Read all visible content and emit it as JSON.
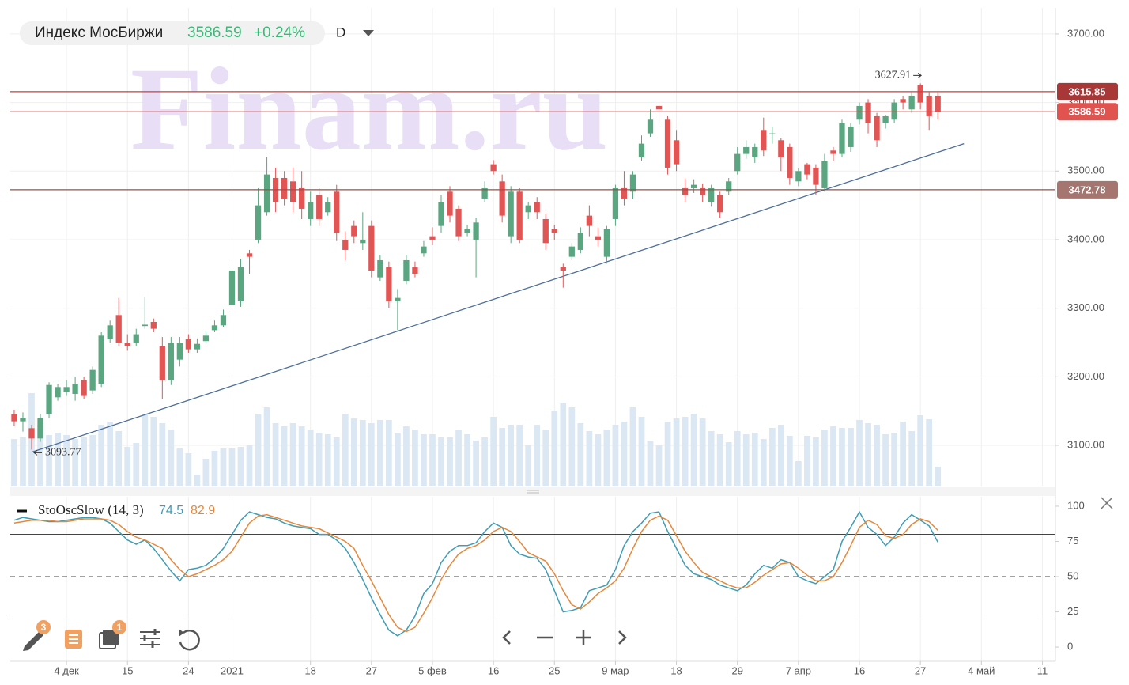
{
  "watermark": "Finam.ru",
  "toolbar": {
    "badges": [
      "3",
      "1"
    ]
  },
  "chart_data": [
    {
      "type": "candlestick",
      "title": "Индекс МосБиржи",
      "change": "+0.24%",
      "interval": "D",
      "up_color": "#5aa680",
      "down_color": "#e25555",
      "volume_color": "#dbe7f2",
      "open": [
        3145,
        3135,
        3125,
        3110,
        3145,
        3170,
        3178,
        3175,
        3195,
        3180,
        3190,
        3255,
        3290,
        3250,
        3250,
        3274,
        3280,
        3245,
        3195,
        3225,
        3255,
        3240,
        3252,
        3268,
        3275,
        3305,
        3310,
        3380,
        3400,
        3440,
        3490,
        3490,
        3485,
        3475,
        3430,
        3465,
        3440,
        3470,
        3400,
        3420,
        3395,
        3420,
        3345,
        3360,
        3310,
        3340,
        3360,
        3380,
        3405,
        3420,
        3470,
        3445,
        3410,
        3400,
        3460,
        3510,
        3485,
        3405,
        3470,
        3440,
        3455,
        3430,
        3415,
        3360,
        3375,
        3385,
        3435,
        3405,
        3375,
        3430,
        3475,
        3470,
        3520,
        3555,
        3595,
        3575,
        3545,
        3475,
        3475,
        3475,
        3455,
        3465,
        3470,
        3500,
        3525,
        3520,
        3560,
        3555,
        3545,
        3535,
        3485,
        3510,
        3505,
        3475,
        3530,
        3525,
        3535,
        3575,
        3600,
        3580,
        3570,
        3575,
        3605,
        3590,
        3625,
        3610,
        3610
      ],
      "high": [
        3152,
        3148,
        3130,
        3145,
        3192,
        3190,
        3195,
        3200,
        3200,
        3215,
        3265,
        3282,
        3315,
        3262,
        3270,
        3316,
        3285,
        3258,
        3258,
        3258,
        3262,
        3256,
        3266,
        3282,
        3298,
        3365,
        3372,
        3385,
        3475,
        3520,
        3505,
        3500,
        3505,
        3500,
        3470,
        3475,
        3462,
        3480,
        3412,
        3428,
        3440,
        3428,
        3378,
        3368,
        3328,
        3378,
        3368,
        3398,
        3418,
        3465,
        3478,
        3450,
        3422,
        3432,
        3485,
        3516,
        3495,
        3478,
        3475,
        3455,
        3462,
        3438,
        3422,
        3365,
        3395,
        3418,
        3450,
        3418,
        3420,
        3480,
        3500,
        3500,
        3552,
        3590,
        3600,
        3580,
        3560,
        3490,
        3488,
        3482,
        3480,
        3470,
        3490,
        3535,
        3545,
        3540,
        3578,
        3565,
        3548,
        3540,
        3505,
        3512,
        3510,
        3525,
        3535,
        3575,
        3570,
        3600,
        3605,
        3585,
        3582,
        3605,
        3610,
        3615,
        3627.91,
        3615,
        3615
      ],
      "low": [
        3128,
        3120,
        3093.77,
        3105,
        3140,
        3165,
        3172,
        3165,
        3168,
        3175,
        3185,
        3250,
        3245,
        3238,
        3245,
        3270,
        3265,
        3168,
        3188,
        3215,
        3235,
        3235,
        3250,
        3265,
        3272,
        3295,
        3302,
        3350,
        3395,
        3435,
        3440,
        3450,
        3440,
        3430,
        3420,
        3420,
        3435,
        3398,
        3370,
        3395,
        3385,
        3345,
        3340,
        3300,
        3268,
        3335,
        3345,
        3375,
        3392,
        3410,
        3425,
        3398,
        3405,
        3345,
        3455,
        3495,
        3425,
        3395,
        3395,
        3430,
        3430,
        3385,
        3400,
        3330,
        3370,
        3380,
        3405,
        3390,
        3365,
        3420,
        3450,
        3460,
        3515,
        3550,
        3570,
        3495,
        3500,
        3455,
        3468,
        3455,
        3448,
        3432,
        3465,
        3495,
        3518,
        3512,
        3522,
        3540,
        3500,
        3480,
        3478,
        3488,
        3465,
        3470,
        3515,
        3520,
        3528,
        3568,
        3555,
        3535,
        3562,
        3570,
        3590,
        3585,
        3590,
        3560,
        3575
      ],
      "close": [
        3135,
        3140,
        3110,
        3140,
        3188,
        3185,
        3185,
        3190,
        3172,
        3210,
        3260,
        3275,
        3250,
        3245,
        3262,
        3276,
        3270,
        3195,
        3250,
        3250,
        3240,
        3248,
        3260,
        3275,
        3290,
        3355,
        3360,
        3375,
        3450,
        3495,
        3455,
        3460,
        3455,
        3445,
        3455,
        3430,
        3455,
        3410,
        3385,
        3405,
        3400,
        3355,
        3370,
        3310,
        3315,
        3370,
        3350,
        3390,
        3400,
        3455,
        3435,
        3405,
        3415,
        3425,
        3475,
        3500,
        3435,
        3470,
        3400,
        3450,
        3440,
        3395,
        3410,
        3355,
        3390,
        3410,
        3420,
        3400,
        3415,
        3475,
        3460,
        3495,
        3540,
        3575,
        3590,
        3505,
        3510,
        3465,
        3480,
        3465,
        3475,
        3440,
        3485,
        3525,
        3535,
        3535,
        3530,
        3555,
        3520,
        3490,
        3500,
        3495,
        3480,
        3515,
        3525,
        3570,
        3565,
        3595,
        3570,
        3545,
        3580,
        3600,
        3600,
        3610,
        3600,
        3580,
        3586.59
      ],
      "volume": [
        60,
        62,
        118,
        78,
        65,
        68,
        65,
        60,
        62,
        65,
        78,
        82,
        70,
        50,
        55,
        92,
        88,
        80,
        72,
        48,
        42,
        15,
        35,
        45,
        48,
        48,
        50,
        52,
        92,
        100,
        80,
        76,
        80,
        76,
        72,
        68,
        66,
        62,
        92,
        86,
        84,
        80,
        84,
        84,
        68,
        76,
        72,
        66,
        66,
        62,
        62,
        72,
        66,
        58,
        62,
        88,
        74,
        78,
        78,
        52,
        78,
        72,
        96,
        105,
        100,
        80,
        70,
        66,
        72,
        78,
        82,
        100,
        88,
        58,
        52,
        82,
        86,
        88,
        92,
        86,
        70,
        66,
        56,
        70,
        66,
        68,
        60,
        74,
        78,
        64,
        32,
        64,
        62,
        72,
        76,
        74,
        74,
        84,
        80,
        78,
        66,
        68,
        82,
        70,
        90,
        85,
        25
      ],
      "volume_lim": [
        0,
        130
      ],
      "xlim": [
        -0.45,
        119.5
      ],
      "xticks": [
        {
          "value": 6,
          "label": "4 дек"
        },
        {
          "value": 13,
          "label": "15"
        },
        {
          "value": 20,
          "label": "24"
        },
        {
          "value": 25,
          "label": "2021"
        },
        {
          "value": 34,
          "label": "18"
        },
        {
          "value": 41,
          "label": "27"
        },
        {
          "value": 48,
          "label": "5 фев"
        },
        {
          "value": 55,
          "label": "16"
        },
        {
          "value": 62,
          "label": "25"
        },
        {
          "value": 69,
          "label": "9 мар"
        },
        {
          "value": 76,
          "label": "18"
        },
        {
          "value": 83,
          "label": "29"
        },
        {
          "value": 90,
          "label": "7 апр"
        },
        {
          "value": 97,
          "label": "16"
        },
        {
          "value": 104,
          "label": "27"
        },
        {
          "value": 111,
          "label": "4 май"
        },
        {
          "value": 118,
          "label": "11"
        }
      ],
      "ylim": [
        3040,
        3738
      ],
      "yticks": [
        {
          "value": 3100,
          "label": "3100.00"
        },
        {
          "value": 3200,
          "label": "3200.00"
        },
        {
          "value": 3300,
          "label": "3300.00"
        },
        {
          "value": 3400,
          "label": "3400.00"
        },
        {
          "value": 3500,
          "label": "3500.00"
        },
        {
          "value": 3600,
          "label": "3600.00"
        },
        {
          "value": 3700,
          "label": "3700.00"
        }
      ],
      "hlines": [
        {
          "value": 3615.85,
          "color": "#d13b3b",
          "label_color": "#a83737"
        },
        {
          "value": 3586.59,
          "color": "#e04848",
          "label_color": "#e0534f"
        },
        {
          "value": 3472.78,
          "color": "#9c4f47",
          "label_color": "#a5766f"
        }
      ],
      "trendline": {
        "x": [
          2,
          109
        ],
        "y": [
          3090,
          3540
        ],
        "color": "#4d6f9a"
      },
      "grid": true
    },
    {
      "type": "line",
      "title": "StoOscSlow (14, 3)",
      "series": [
        {
          "color": "#3e9db5",
          "values": [
            90,
            92,
            91,
            90,
            89,
            89,
            90,
            91,
            92,
            92,
            91,
            88,
            82,
            76,
            73,
            76,
            70,
            62,
            54,
            47,
            55,
            56,
            58,
            63,
            70,
            80,
            90,
            96,
            94,
            92,
            91,
            88,
            86,
            85,
            84,
            80,
            80,
            76,
            70,
            60,
            48,
            35,
            23,
            12,
            8,
            12,
            22,
            38,
            45,
            60,
            68,
            72,
            72,
            74,
            82,
            88,
            85,
            72,
            66,
            64,
            63,
            55,
            40,
            25,
            26,
            28,
            40,
            42,
            44,
            55,
            72,
            82,
            88,
            95,
            96,
            82,
            70,
            58,
            52,
            50,
            48,
            44,
            42,
            40,
            44,
            52,
            58,
            56,
            62,
            60,
            50,
            47,
            45,
            50,
            55,
            75,
            85,
            96,
            85,
            80,
            72,
            78,
            88,
            94,
            90,
            86,
            74.5
          ]
        },
        {
          "color": "#e6883a",
          "values": [
            88,
            89,
            90,
            90,
            90,
            89,
            89,
            90,
            91,
            91,
            91,
            90,
            87,
            82,
            78,
            76,
            73,
            70,
            62,
            55,
            50,
            52,
            55,
            58,
            62,
            68,
            78,
            88,
            93,
            94,
            92,
            90,
            88,
            86,
            85,
            84,
            81,
            78,
            75,
            70,
            58,
            47,
            35,
            23,
            14,
            11,
            14,
            24,
            35,
            48,
            58,
            66,
            70,
            72,
            76,
            82,
            85,
            82,
            75,
            67,
            64,
            61,
            52,
            40,
            30,
            27,
            32,
            38,
            42,
            47,
            56,
            70,
            82,
            90,
            93,
            90,
            79,
            68,
            60,
            53,
            50,
            47,
            44,
            42,
            42,
            46,
            51,
            55,
            59,
            60,
            56,
            51,
            47,
            47,
            50,
            60,
            72,
            85,
            90,
            87,
            79,
            77,
            80,
            87,
            91,
            89,
            82.9
          ]
        }
      ],
      "levels": [
        {
          "value": 80,
          "dashed": false
        },
        {
          "value": 50,
          "dashed": true
        },
        {
          "value": 20,
          "dashed": false
        }
      ],
      "xlim": [
        -0.45,
        119.5
      ],
      "ylim": [
        -6.7,
        106.7
      ],
      "yticks": [
        0,
        25,
        50,
        75,
        100
      ]
    }
  ]
}
